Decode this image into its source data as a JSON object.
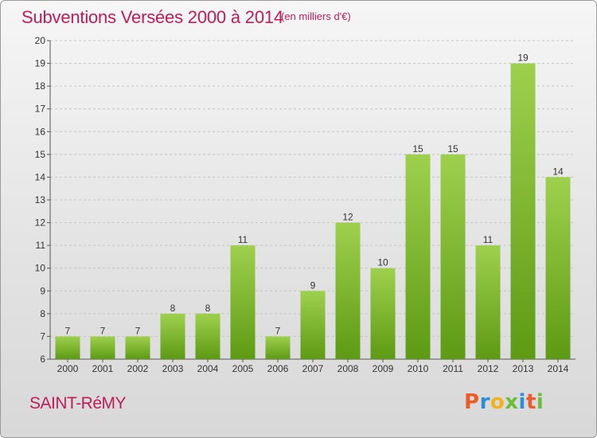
{
  "header": {
    "title": "Subventions Versées 2000 à 2014",
    "subtitle": "(en milliers d'€)"
  },
  "footer": {
    "place": "SAINT-RéMY",
    "logo_text": "Proxiti"
  },
  "colors": {
    "title": "#c01c5a",
    "bar_top": "#9ed04e",
    "bar_bottom": "#5e9a14",
    "logo_letters": [
      "#e85d2a",
      "#2a8fd8",
      "#f2b21c",
      "#6abf3a",
      "#2a8fd8",
      "#e85d2a",
      "#6abf3a"
    ]
  },
  "chart_data": {
    "type": "bar",
    "title": "Subventions Versées 2000 à 2014",
    "subtitle": "(en milliers d'€)",
    "xlabel": "",
    "ylabel": "",
    "categories": [
      "2000",
      "2001",
      "2002",
      "2003",
      "2004",
      "2005",
      "2006",
      "2007",
      "2008",
      "2009",
      "2010",
      "2011",
      "2012",
      "2013",
      "2014"
    ],
    "values": [
      7,
      7,
      7,
      8,
      8,
      11,
      7,
      9,
      12,
      10,
      15,
      15,
      11,
      19,
      14
    ],
    "ylim": [
      6,
      20
    ],
    "yticks": [
      6,
      7,
      8,
      9,
      10,
      11,
      12,
      13,
      14,
      15,
      16,
      17,
      18,
      19,
      20
    ],
    "grid": true,
    "data_labels": true
  }
}
